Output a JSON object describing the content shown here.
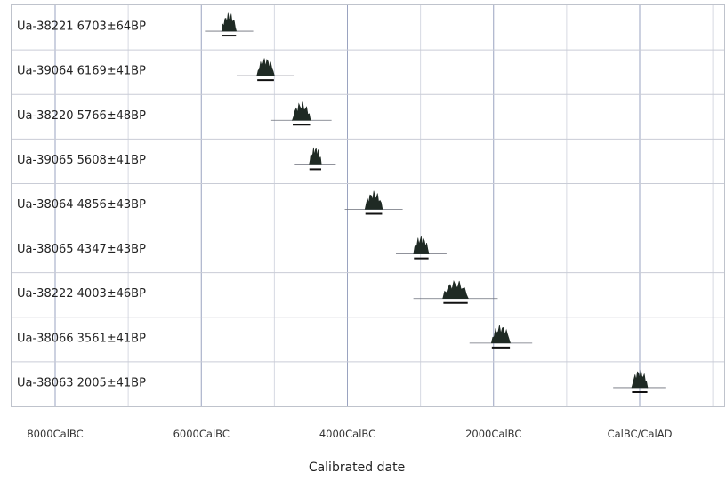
{
  "chart_data": {
    "type": "range",
    "title": "",
    "xlabel": "Calibrated date",
    "ylabel": "",
    "x_range": [
      -8000,
      1200
    ],
    "x_ticks": [
      {
        "value": -8000,
        "label": "8000CalBC"
      },
      {
        "value": -6000,
        "label": "6000CalBC"
      },
      {
        "value": -4000,
        "label": "4000CalBC"
      },
      {
        "value": -2000,
        "label": "2000CalBC"
      },
      {
        "value": 0,
        "label": "CalBC/CalAD"
      }
    ],
    "grid": true,
    "series": [
      {
        "label": "Ua-38221  6703±64BP",
        "lab_id": "Ua-38221",
        "bp": "6703±64BP",
        "range_start": -5720,
        "range_end": -5520,
        "mean": -5620
      },
      {
        "label": "Ua-39064  6169±41BP",
        "lab_id": "Ua-39064",
        "bp": "6169±41BP",
        "range_start": -5230,
        "range_end": -4990,
        "mean": -5120
      },
      {
        "label": "Ua-38220  5766±48BP",
        "lab_id": "Ua-38220",
        "bp": "5766±48BP",
        "range_start": -4770,
        "range_end": -4520,
        "mean": -4630
      },
      {
        "label": "Ua-39065  5608±41BP",
        "lab_id": "Ua-39065",
        "bp": "5608±41BP",
        "range_start": -4530,
        "range_end": -4360,
        "mean": -4440
      },
      {
        "label": "Ua-38064  4856±43BP",
        "lab_id": "Ua-38064",
        "bp": "4856±43BP",
        "range_start": -3760,
        "range_end": -3520,
        "mean": -3640
      },
      {
        "label": "Ua-38065  4347±43BP",
        "lab_id": "Ua-38065",
        "bp": "4347±43BP",
        "range_start": -3100,
        "range_end": -2890,
        "mean": -2990
      },
      {
        "label": "Ua-38222  4003±46BP",
        "lab_id": "Ua-38222",
        "bp": "4003±46BP",
        "range_start": -2700,
        "range_end": -2350,
        "mean": -2520
      },
      {
        "label": "Ua-38066  3561±41BP",
        "lab_id": "Ua-38066",
        "bp": "3561±41BP",
        "range_start": -2030,
        "range_end": -1770,
        "mean": -1900
      },
      {
        "label": "Ua-38063  2005±41BP",
        "lab_id": "Ua-38063",
        "bp": "2005±41BP",
        "range_start": -110,
        "range_end": 110,
        "mean": 0
      }
    ]
  }
}
